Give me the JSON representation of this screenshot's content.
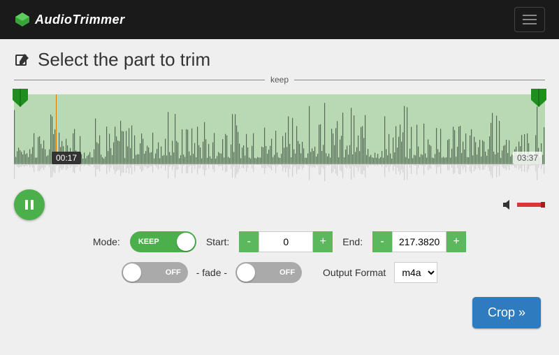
{
  "brand": {
    "name": "AudioTrimmer",
    "logo_color": "#3aa23a"
  },
  "title": "Select the part to trim",
  "separator_label": "keep",
  "waveform": {
    "selection_bg": "#b8d9b2",
    "bar_color": "#556b55",
    "reflection_color": "#9a9a9a",
    "handle_color": "#1e8f1e",
    "playhead_color": "#d97b00",
    "time_current": "00:17",
    "time_total": "03:37",
    "bar_count": 380
  },
  "play_button": {
    "state": "pause",
    "bg": "#4bb04b"
  },
  "volume": {
    "bar_color": "#d93636"
  },
  "mode": {
    "label": "Mode:",
    "toggle_label": "KEEP",
    "on": true
  },
  "start": {
    "label": "Start:",
    "value": "0"
  },
  "end": {
    "label": "End:",
    "value": "217.3820"
  },
  "fade": {
    "label": "- fade -",
    "in_label": "OFF",
    "out_label": "OFF"
  },
  "output": {
    "label": "Output Format",
    "value": "m4a"
  },
  "crop_button": "Crop »",
  "colors": {
    "btn_green": "#5cb85c",
    "btn_blue": "#2f7bbf",
    "topbar": "#1a1a1a"
  }
}
